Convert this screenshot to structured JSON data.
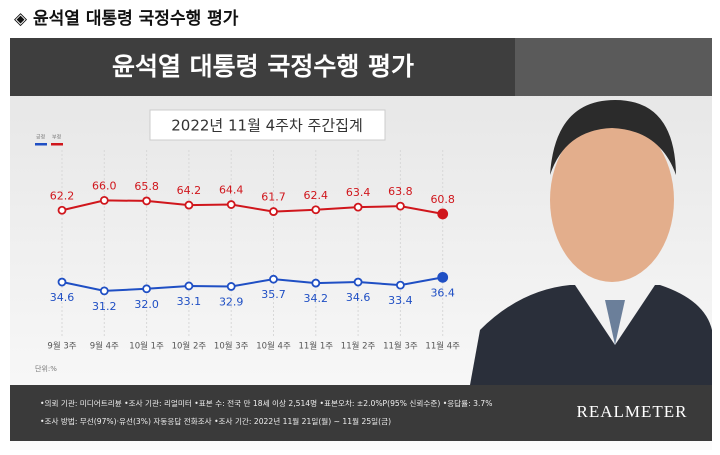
{
  "page_heading": "◈ 윤석열 대통령 국정수행 평가",
  "chart_data": {
    "type": "line",
    "title": "윤석열 대통령 국정수행 평가",
    "subtitle": "2022년 11월 4주차 주간집계",
    "unit_label": "단위:%",
    "categories": [
      "9월 3주",
      "9월 4주",
      "10월 1주",
      "10월 2주",
      "10월 3주",
      "10월 4주",
      "11월 1주",
      "11월 2주",
      "11월 3주",
      "11월 4주"
    ],
    "series": [
      {
        "name": "부정",
        "color": "#d0161c",
        "values": [
          62.2,
          66.0,
          65.8,
          64.2,
          64.4,
          61.7,
          62.4,
          63.4,
          63.8,
          60.8
        ],
        "value_labels": [
          "62.2",
          "66.0",
          "65.8",
          "64.2",
          "64.4",
          "61.7",
          "62.4",
          "63.4",
          "63.8",
          "60.8"
        ]
      },
      {
        "name": "긍정",
        "color": "#1f4fc4",
        "values": [
          34.6,
          31.2,
          32.0,
          33.1,
          32.9,
          35.7,
          34.2,
          34.6,
          33.4,
          36.4
        ],
        "value_labels": [
          "34.6",
          "31.2",
          "32.0",
          "33.1",
          "32.9",
          "35.7",
          "34.2",
          "34.6",
          "33.4",
          "36.4"
        ]
      }
    ],
    "ylim": [
      20,
      75
    ]
  },
  "footer": {
    "notes": [
      "•의뢰 기관: 미디어트리뷴 •조사 기관: 리얼미터 •표본 수: 전국 만 18세 이상 2,514명 •표본오차: ±2.0%P(95% 신뢰수준) •응답률: 3.7%",
      "•조사 방법: 무선(97%)·유선(3%) 자동응답 전화조사 •조사 기간: 2022년 11월 21일(월) ~ 11월 25일(금)"
    ],
    "brand": "REALMETER"
  }
}
